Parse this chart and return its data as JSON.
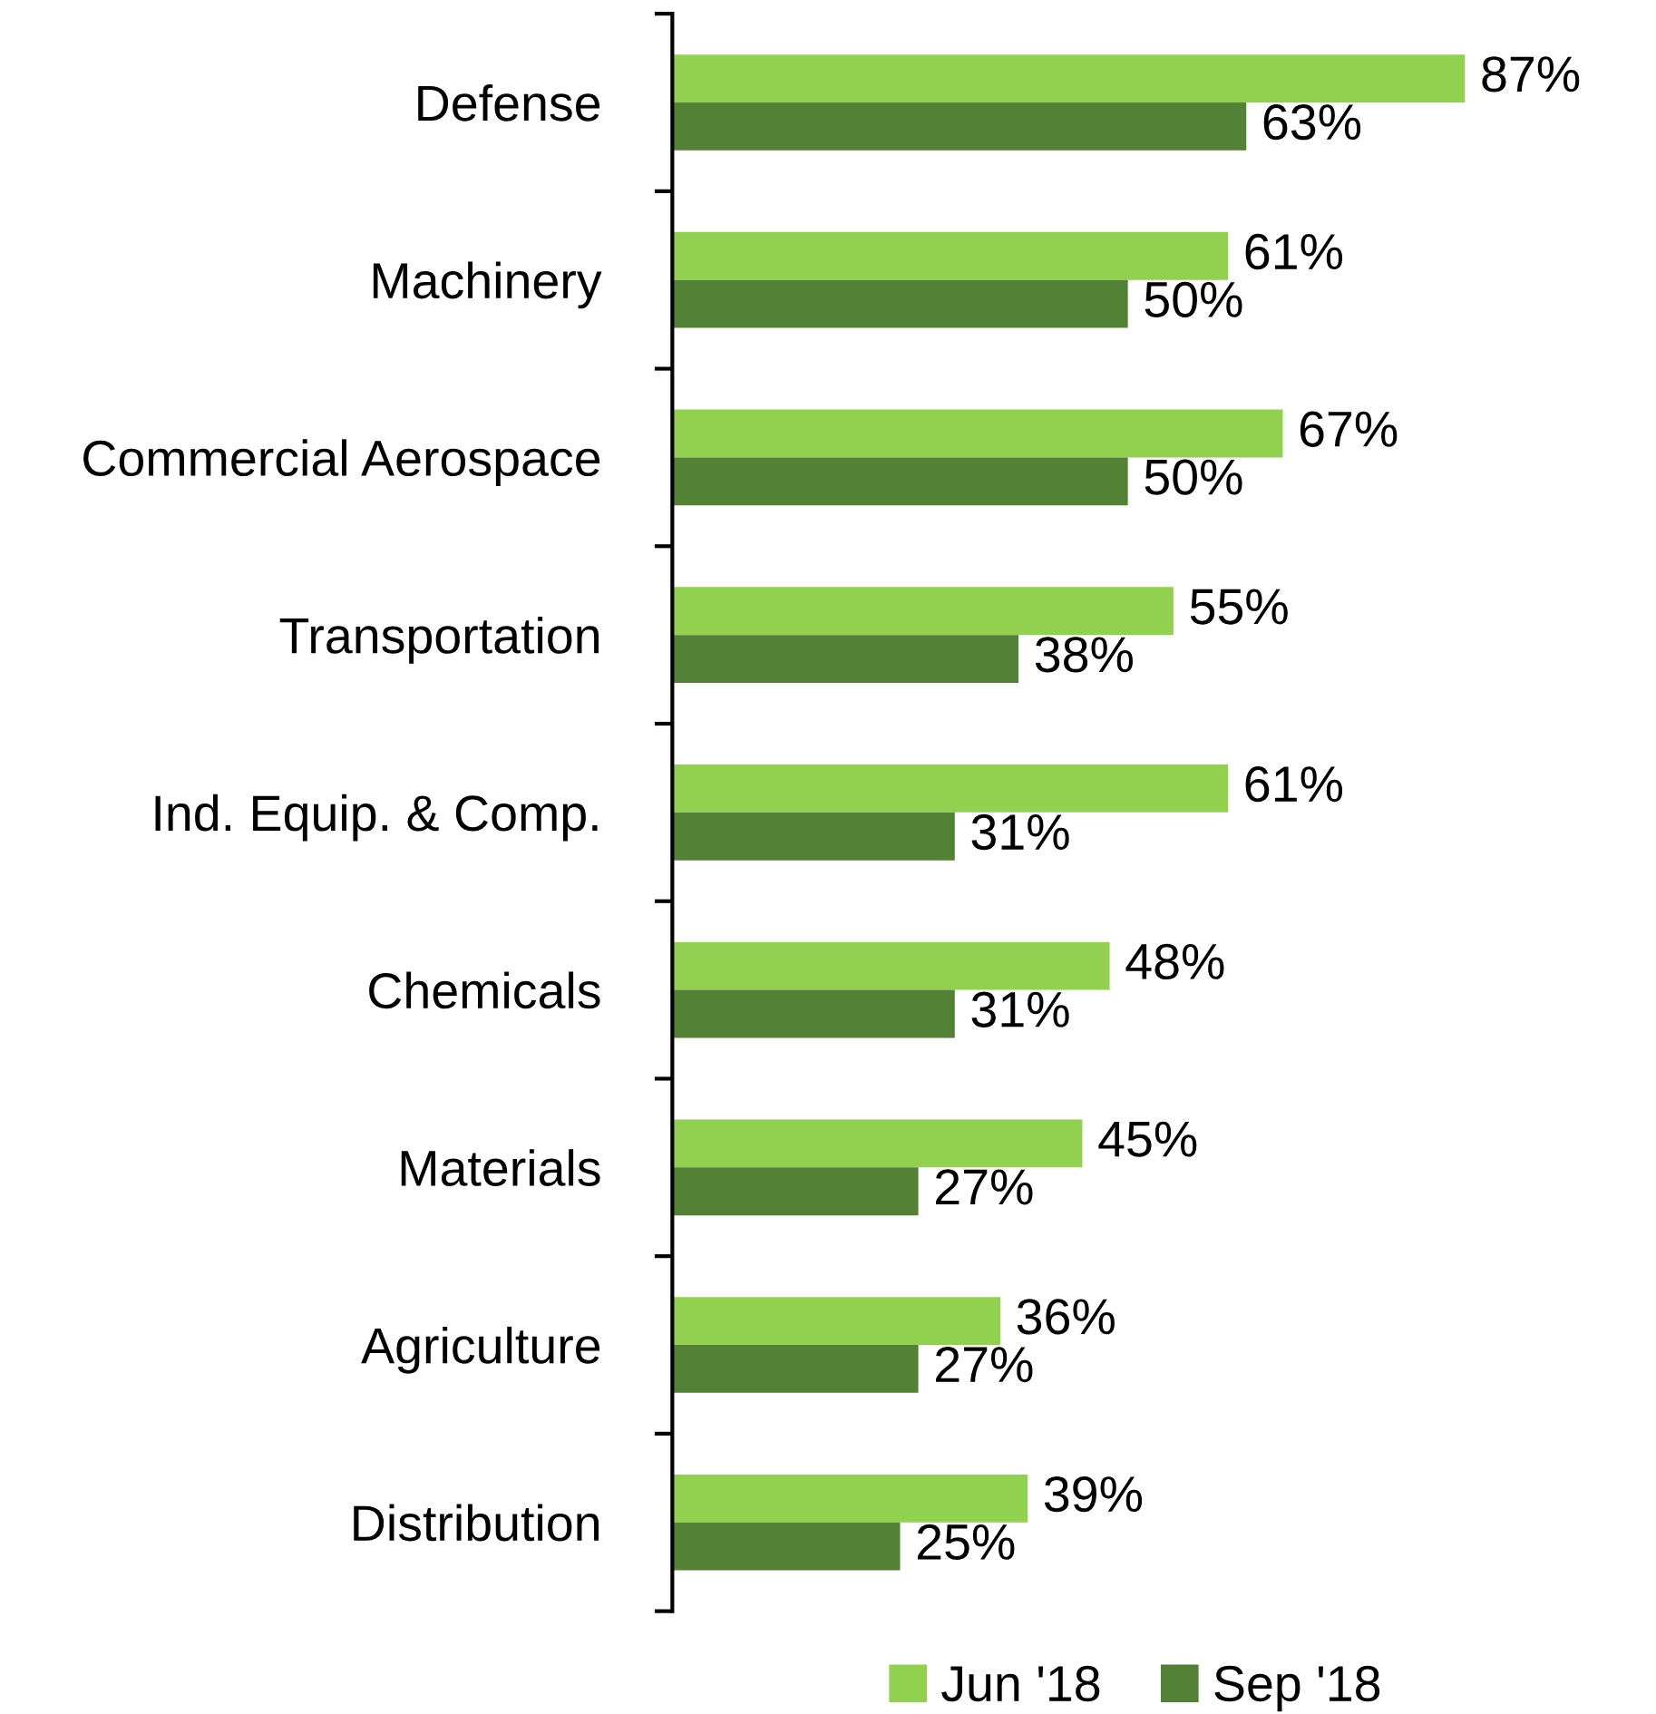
{
  "chart_data": {
    "type": "bar",
    "orientation": "horizontal",
    "categories": [
      "Defense",
      "Machinery",
      "Commercial Aerospace",
      "Transportation",
      "Ind. Equip. & Comp.",
      "Chemicals",
      "Materials",
      "Agriculture",
      "Distribution"
    ],
    "series": [
      {
        "name": "Jun '18",
        "color": "#92d050",
        "values": [
          87,
          61,
          67,
          55,
          61,
          48,
          45,
          36,
          39
        ],
        "value_labels": [
          "87%",
          "61%",
          "67%",
          "55%",
          "61%",
          "48%",
          "45%",
          "36%",
          "39%"
        ]
      },
      {
        "name": "Sep '18",
        "color": "#538135",
        "values": [
          63,
          50,
          50,
          38,
          31,
          31,
          27,
          27,
          25
        ],
        "value_labels": [
          "63%",
          "50%",
          "50%",
          "38%",
          "31%",
          "31%",
          "27%",
          "27%",
          "25%"
        ]
      }
    ],
    "legend": "bottom",
    "grid": false
  }
}
